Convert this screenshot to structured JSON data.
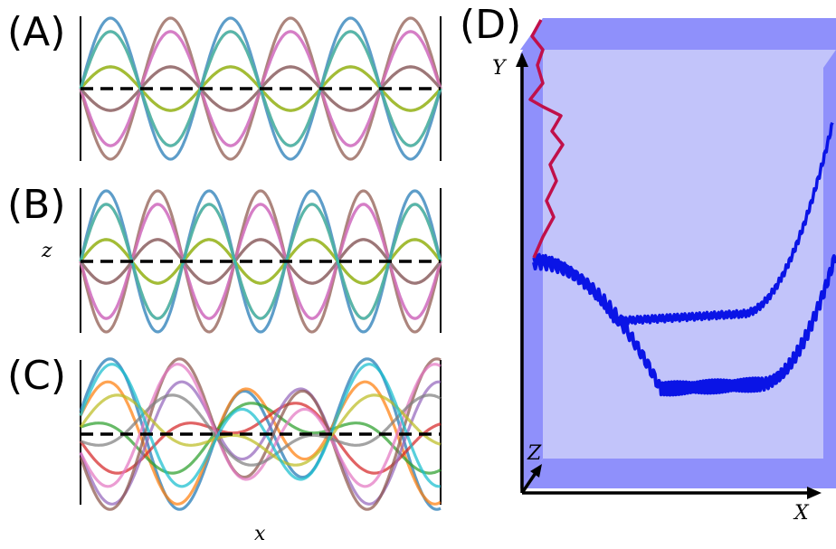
{
  "panels": {
    "a": {
      "label": "(A)"
    },
    "b": {
      "label": "(B)"
    },
    "c": {
      "label": "(C)"
    },
    "d": {
      "label": "(D)"
    }
  },
  "axes_2d": {
    "ylabel": "z",
    "xlabel": "x"
  },
  "axes_3d": {
    "x": "X",
    "y": "Y",
    "z": "Z"
  },
  "colors": {
    "curves": [
      "#1f77b4",
      "#ff7f0e",
      "#2ca02c",
      "#d62728",
      "#9467bd",
      "#8c564b",
      "#e377c2",
      "#7f7f7f",
      "#bcbd22",
      "#17becf"
    ],
    "baseline": "#000000",
    "box_face": "#c2c4fa",
    "box_edge": "#8f90fb",
    "trajectory_main": "#0a14e6",
    "trajectory_upper": "#c0104a"
  }
}
